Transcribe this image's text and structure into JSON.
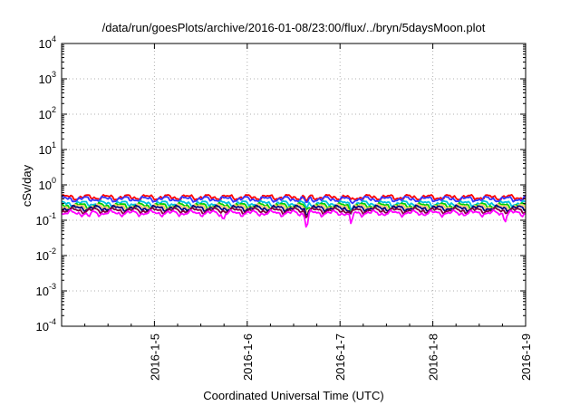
{
  "chart_data": {
    "type": "line",
    "title": "/data/run/goesPlots/archive/2016-01-08/23:00/flux/../bryn/5daysMoon.plot",
    "xlabel": "Coordinated Universal Time (UTC)",
    "ylabel": "cSv/day",
    "yscale": "log",
    "ylim": [
      0.0001,
      10000
    ],
    "xlim_days": [
      0,
      5
    ],
    "grid": true,
    "x_ticks": [
      {
        "day": 1,
        "label": "2016-1-5"
      },
      {
        "day": 2,
        "label": "2016-1-6"
      },
      {
        "day": 3,
        "label": "2016-1-7"
      },
      {
        "day": 4,
        "label": "2016-1-8"
      },
      {
        "day": 5,
        "label": "2016-1-9"
      }
    ],
    "y_ticks": [
      {
        "value": 0.0001,
        "base": "10",
        "exp": "-4"
      },
      {
        "value": 0.001,
        "base": "10",
        "exp": "-3"
      },
      {
        "value": 0.01,
        "base": "10",
        "exp": "-2"
      },
      {
        "value": 0.1,
        "base": "10",
        "exp": "-1"
      },
      {
        "value": 1,
        "base": "10",
        "exp": "0"
      },
      {
        "value": 10,
        "base": "10",
        "exp": "1"
      },
      {
        "value": 100,
        "base": "10",
        "exp": "2"
      },
      {
        "value": 1000,
        "base": "10",
        "exp": "3"
      },
      {
        "value": 10000,
        "base": "10",
        "exp": "4"
      }
    ],
    "series": [
      {
        "color": "#ff0000",
        "level": 0.45
      },
      {
        "color": "#3333ff",
        "level": 0.4
      },
      {
        "color": "#00c0e0",
        "level": 0.3
      },
      {
        "color": "#00d000",
        "level": 0.26
      },
      {
        "color": "#ffcc66",
        "level": 0.24
      },
      {
        "color": "#000080",
        "level": 0.22
      },
      {
        "color": "#800040",
        "level": 0.19
      },
      {
        "color": "#ff00ff",
        "level": 0.16
      }
    ],
    "dips": [
      {
        "day": 0.29,
        "factor": 0.7
      },
      {
        "day": 1.74,
        "factor": 0.7
      },
      {
        "day": 2.64,
        "factor": 0.35
      },
      {
        "day": 3.12,
        "factor": 0.4
      },
      {
        "day": 4.78,
        "factor": 0.65
      }
    ]
  }
}
